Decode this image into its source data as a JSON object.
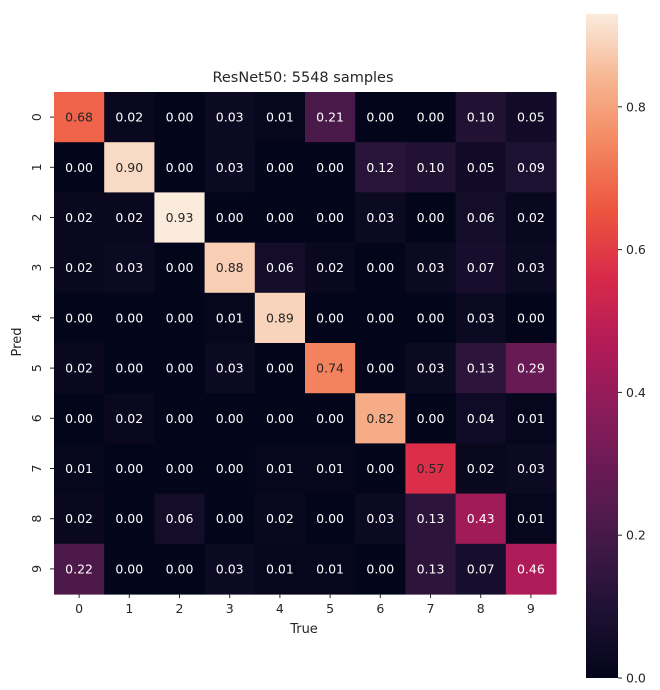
{
  "chart_data": {
    "type": "heatmap",
    "title": "ResNet50: 5548 samples",
    "xlabel": "True",
    "ylabel": "Pred",
    "x_categories": [
      "0",
      "1",
      "2",
      "3",
      "4",
      "5",
      "6",
      "7",
      "8",
      "9"
    ],
    "y_categories": [
      "0",
      "1",
      "2",
      "3",
      "4",
      "5",
      "6",
      "7",
      "8",
      "9"
    ],
    "values": [
      [
        0.68,
        0.02,
        0.0,
        0.03,
        0.01,
        0.21,
        0.0,
        0.0,
        0.1,
        0.05
      ],
      [
        0.0,
        0.9,
        0.0,
        0.03,
        0.0,
        0.0,
        0.12,
        0.1,
        0.05,
        0.09
      ],
      [
        0.02,
        0.02,
        0.93,
        0.0,
        0.0,
        0.0,
        0.03,
        0.0,
        0.06,
        0.02
      ],
      [
        0.02,
        0.03,
        0.0,
        0.88,
        0.06,
        0.02,
        0.0,
        0.03,
        0.07,
        0.03
      ],
      [
        0.0,
        0.0,
        0.0,
        0.01,
        0.89,
        0.0,
        0.0,
        0.0,
        0.03,
        0.0
      ],
      [
        0.02,
        0.0,
        0.0,
        0.03,
        0.0,
        0.74,
        0.0,
        0.03,
        0.13,
        0.29
      ],
      [
        0.0,
        0.02,
        0.0,
        0.0,
        0.0,
        0.0,
        0.82,
        0.0,
        0.04,
        0.01
      ],
      [
        0.01,
        0.0,
        0.0,
        0.0,
        0.01,
        0.01,
        0.0,
        0.57,
        0.02,
        0.03
      ],
      [
        0.02,
        0.0,
        0.06,
        0.0,
        0.02,
        0.0,
        0.03,
        0.13,
        0.43,
        0.01
      ],
      [
        0.22,
        0.0,
        0.0,
        0.03,
        0.01,
        0.01,
        0.0,
        0.13,
        0.07,
        0.46
      ]
    ],
    "value_format_decimals": 2,
    "colormap": "rocket",
    "color_range": [
      0.0,
      0.93
    ],
    "colorbar": {
      "ticks": [
        0.0,
        0.2,
        0.4,
        0.6,
        0.8
      ],
      "tick_labels": [
        "0.0",
        "0.2",
        "0.4",
        "0.6",
        "0.8"
      ],
      "placement": "right"
    },
    "grid": false,
    "colors": {
      "annotation_dark_bg": "#ffffff",
      "annotation_light_bg": "#262626",
      "axis_text": "#262626"
    }
  }
}
